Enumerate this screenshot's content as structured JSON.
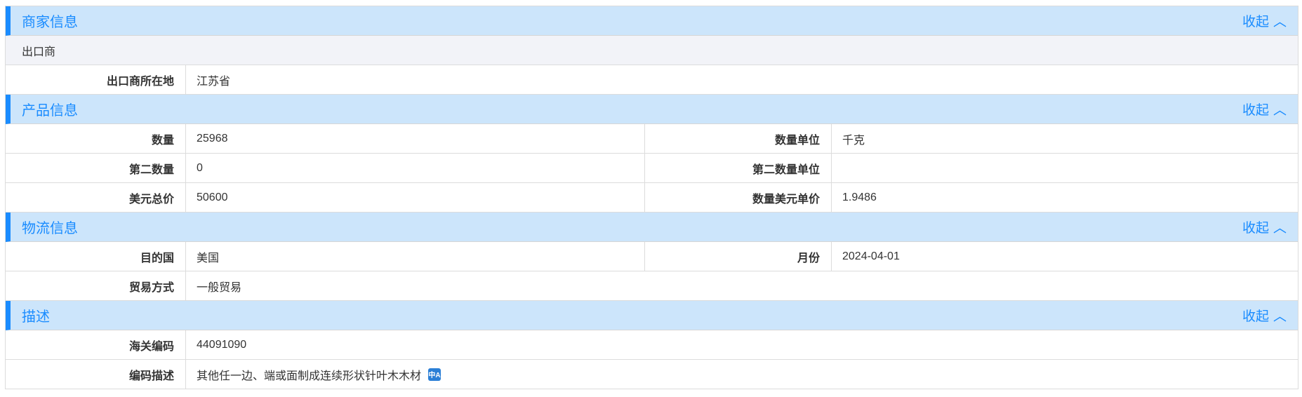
{
  "collapse_label": "收起",
  "sections": {
    "merchant": {
      "title": "商家信息",
      "sub": "出口商",
      "rows": [
        {
          "label": "出口商所在地",
          "value": "江苏省"
        }
      ]
    },
    "product": {
      "title": "产品信息",
      "rows": [
        {
          "l1": "数量",
          "v1": "25968",
          "l2": "数量单位",
          "v2": "千克"
        },
        {
          "l1": "第二数量",
          "v1": "0",
          "l2": "第二数量单位",
          "v2": ""
        },
        {
          "l1": "美元总价",
          "v1": "50600",
          "l2": "数量美元单价",
          "v2": "1.9486"
        }
      ]
    },
    "logistics": {
      "title": "物流信息",
      "rows": [
        {
          "l1": "目的国",
          "v1": "美国",
          "l2": "月份",
          "v2": "2024-04-01"
        },
        {
          "l1": "贸易方式",
          "v1": "一般贸易"
        }
      ]
    },
    "description": {
      "title": "描述",
      "rows": [
        {
          "label": "海关编码",
          "value": "44091090"
        },
        {
          "label": "编码描述",
          "value": "其他任一边、端或面制成连续形状针叶木木材",
          "icon": "translate-icon"
        }
      ]
    }
  }
}
